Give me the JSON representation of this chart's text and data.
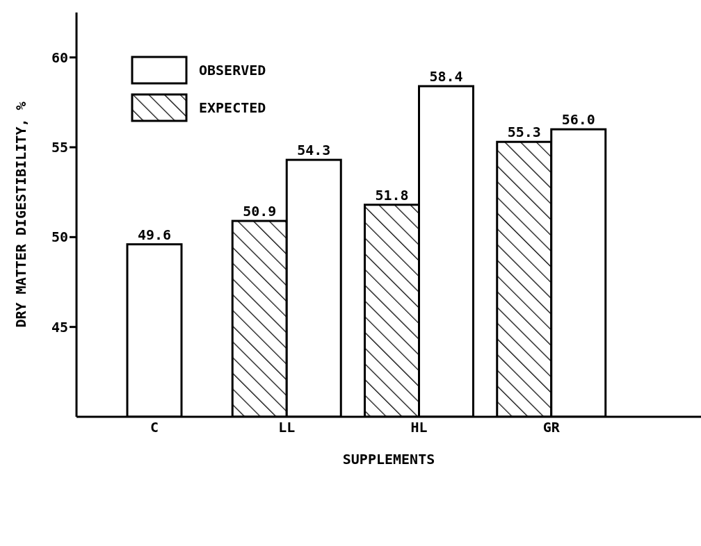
{
  "chart_data": {
    "type": "bar",
    "xlabel": "SUPPLEMENTS",
    "ylabel": "DRY MATTER DIGESTIBILITY, %",
    "categories": [
      "C",
      "LL",
      "HL",
      "GR"
    ],
    "series": [
      {
        "name": "EXPECTED",
        "color": "#000000",
        "values": [
          null,
          50.9,
          51.8,
          55.3
        ],
        "value_labels": [
          null,
          "50.9",
          "51.8",
          "55.3"
        ]
      },
      {
        "name": "OBSERVED",
        "color": "#ffffff",
        "values": [
          49.6,
          54.3,
          58.4,
          56.0
        ],
        "value_labels": [
          "49.6",
          "54.3",
          "58.4",
          "56.0"
        ]
      }
    ],
    "ylim": [
      40,
      62.5
    ],
    "yticks": [
      45,
      50,
      55,
      60
    ],
    "grid": false,
    "legend": "top left"
  }
}
